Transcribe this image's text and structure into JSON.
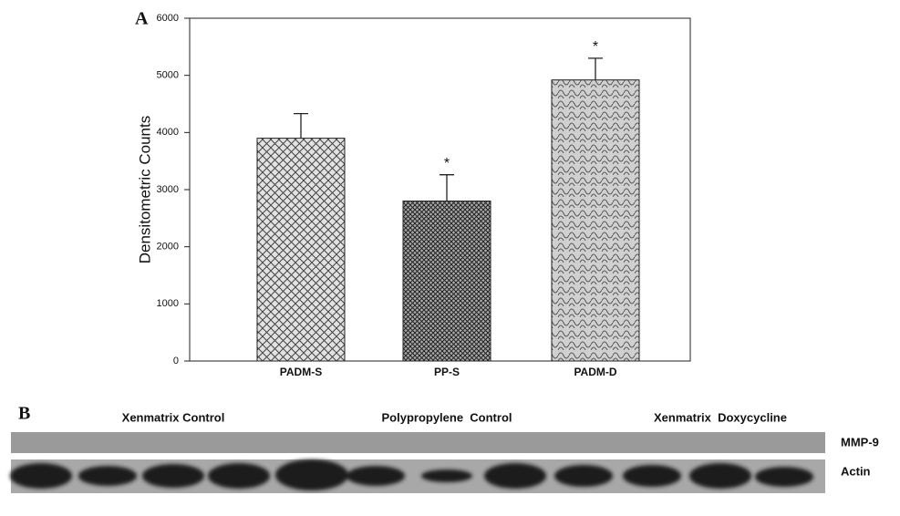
{
  "chart_data": {
    "type": "bar",
    "panel_label": "A",
    "y_label": "Densitometric Counts",
    "categories": [
      "PADM-S",
      "PP-S",
      "PADM-D"
    ],
    "values": [
      3900,
      2800,
      4920
    ],
    "errors": [
      430,
      460,
      380
    ],
    "significance": [
      null,
      "*",
      "*"
    ],
    "ylim": [
      0,
      6000
    ],
    "yticks": [
      0,
      1000,
      2000,
      3000,
      4000,
      5000,
      6000
    ],
    "grid": false
  },
  "panel_b": {
    "label": "B",
    "groups": [
      "Xenmatrix Control",
      "Polypropylene  Control",
      "Xenmatrix  Doxycycline"
    ],
    "rows": [
      "MMP-9",
      "Actin"
    ]
  }
}
